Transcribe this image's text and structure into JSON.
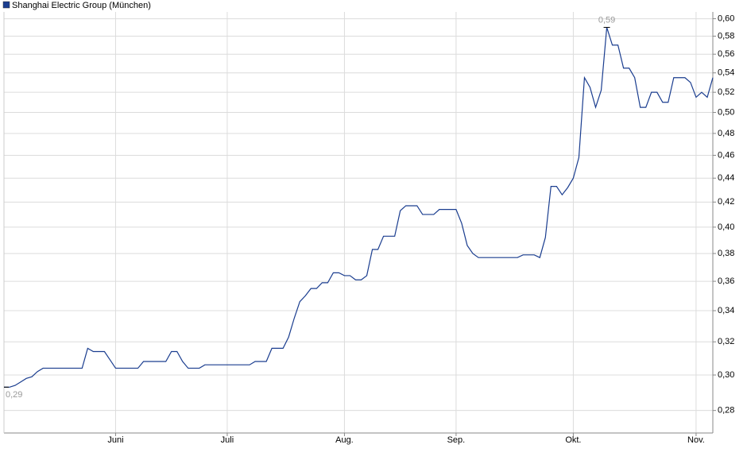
{
  "chart_data": {
    "type": "line",
    "log_scale": true,
    "grid": true,
    "legend": "top-left",
    "series": [
      {
        "name": "Shanghai Electric Group (München)",
        "color": "#1a3d8f",
        "values": [
          0.293,
          0.293,
          0.294,
          0.296,
          0.298,
          0.299,
          0.302,
          0.304,
          0.304,
          0.304,
          0.304,
          0.304,
          0.304,
          0.304,
          0.304,
          0.316,
          0.314,
          0.314,
          0.314,
          0.309,
          0.304,
          0.304,
          0.304,
          0.304,
          0.304,
          0.308,
          0.308,
          0.308,
          0.308,
          0.308,
          0.314,
          0.314,
          0.308,
          0.304,
          0.304,
          0.304,
          0.306,
          0.306,
          0.306,
          0.306,
          0.306,
          0.306,
          0.306,
          0.306,
          0.306,
          0.308,
          0.308,
          0.308,
          0.316,
          0.316,
          0.316,
          0.323,
          0.335,
          0.346,
          0.35,
          0.355,
          0.355,
          0.359,
          0.359,
          0.366,
          0.366,
          0.364,
          0.364,
          0.361,
          0.361,
          0.364,
          0.383,
          0.383,
          0.393,
          0.393,
          0.393,
          0.413,
          0.417,
          0.417,
          0.417,
          0.41,
          0.41,
          0.41,
          0.414,
          0.414,
          0.414,
          0.414,
          0.403,
          0.386,
          0.38,
          0.377,
          0.377,
          0.377,
          0.377,
          0.377,
          0.377,
          0.377,
          0.377,
          0.379,
          0.379,
          0.379,
          0.377,
          0.392,
          0.433,
          0.433,
          0.426,
          0.432,
          0.44,
          0.458,
          0.535,
          0.525,
          0.505,
          0.522,
          0.59,
          0.57,
          0.57,
          0.545,
          0.545,
          0.535,
          0.505,
          0.505,
          0.52,
          0.52,
          0.51,
          0.51,
          0.535,
          0.535,
          0.535,
          0.53,
          0.515,
          0.52,
          0.515,
          0.535
        ]
      }
    ],
    "categories": [
      null,
      null,
      null,
      null,
      null,
      null,
      null,
      null,
      null,
      null,
      null,
      null,
      null,
      null,
      null,
      null,
      null,
      null,
      null,
      null,
      "Juni",
      null,
      null,
      null,
      null,
      null,
      null,
      null,
      null,
      null,
      null,
      null,
      null,
      null,
      null,
      null,
      null,
      null,
      null,
      null,
      "Juli",
      null,
      null,
      null,
      null,
      null,
      null,
      null,
      null,
      null,
      null,
      null,
      null,
      null,
      null,
      null,
      null,
      null,
      null,
      null,
      null,
      "Aug.",
      null,
      null,
      null,
      null,
      null,
      null,
      null,
      null,
      null,
      null,
      null,
      null,
      null,
      null,
      null,
      null,
      null,
      null,
      null,
      "Sep.",
      null,
      null,
      null,
      null,
      null,
      null,
      null,
      null,
      null,
      null,
      null,
      null,
      null,
      null,
      null,
      null,
      null,
      null,
      null,
      null,
      "Okt.",
      null,
      null,
      null,
      null,
      null,
      null,
      null,
      null,
      null,
      null,
      null,
      null,
      null,
      null,
      null,
      null,
      null,
      null,
      null,
      null,
      null,
      "Nov.",
      null,
      null,
      null
    ],
    "max_label": "0,59",
    "min_label": "0,29",
    "ylim": [
      0.268,
      0.608
    ],
    "yticks": [
      {
        "value": 0.28,
        "label": "0,28"
      },
      {
        "value": 0.3,
        "label": "0,30"
      },
      {
        "value": 0.32,
        "label": "0,32"
      },
      {
        "value": 0.34,
        "label": "0,34"
      },
      {
        "value": 0.36,
        "label": "0,36"
      },
      {
        "value": 0.38,
        "label": "0,38"
      },
      {
        "value": 0.4,
        "label": "0,40"
      },
      {
        "value": 0.42,
        "label": "0,42"
      },
      {
        "value": 0.44,
        "label": "0,44"
      },
      {
        "value": 0.46,
        "label": "0,46"
      },
      {
        "value": 0.48,
        "label": "0,48"
      },
      {
        "value": 0.5,
        "label": "0,50"
      },
      {
        "value": 0.52,
        "label": "0,52"
      },
      {
        "value": 0.54,
        "label": "0,54"
      },
      {
        "value": 0.56,
        "label": "0,56"
      },
      {
        "value": 0.58,
        "label": "0,58"
      },
      {
        "value": 0.6,
        "label": "0,60"
      }
    ]
  }
}
